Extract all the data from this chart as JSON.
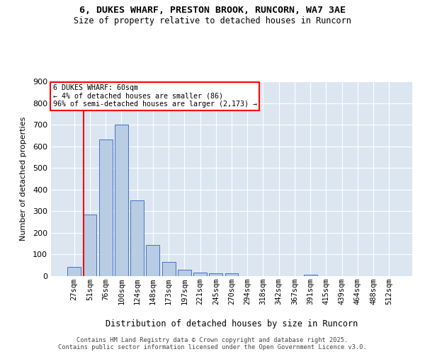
{
  "title_line1": "6, DUKES WHARF, PRESTON BROOK, RUNCORN, WA7 3AE",
  "title_line2": "Size of property relative to detached houses in Runcorn",
  "xlabel": "Distribution of detached houses by size in Runcorn",
  "ylabel": "Number of detached properties",
  "bar_labels": [
    "27sqm",
    "51sqm",
    "76sqm",
    "100sqm",
    "124sqm",
    "148sqm",
    "173sqm",
    "197sqm",
    "221sqm",
    "245sqm",
    "270sqm",
    "294sqm",
    "318sqm",
    "342sqm",
    "367sqm",
    "391sqm",
    "415sqm",
    "439sqm",
    "464sqm",
    "488sqm",
    "512sqm"
  ],
  "bar_values": [
    42,
    285,
    632,
    700,
    350,
    143,
    65,
    28,
    15,
    12,
    12,
    0,
    0,
    0,
    0,
    8,
    0,
    0,
    0,
    0,
    0
  ],
  "bar_color": "#b8cce4",
  "bar_edgecolor": "#4472c4",
  "fig_background": "#ffffff",
  "plot_background": "#dce6f1",
  "grid_color": "#ffffff",
  "vline_color": "red",
  "vline_pos": 0.6,
  "annotation_title": "6 DUKES WHARF: 60sqm",
  "annotation_line1": "← 4% of detached houses are smaller (86)",
  "annotation_line2": "96% of semi-detached houses are larger (2,173) →",
  "ylim": [
    0,
    900
  ],
  "yticks": [
    0,
    100,
    200,
    300,
    400,
    500,
    600,
    700,
    800,
    900
  ],
  "footer_line1": "Contains HM Land Registry data © Crown copyright and database right 2025.",
  "footer_line2": "Contains public sector information licensed under the Open Government Licence v3.0."
}
